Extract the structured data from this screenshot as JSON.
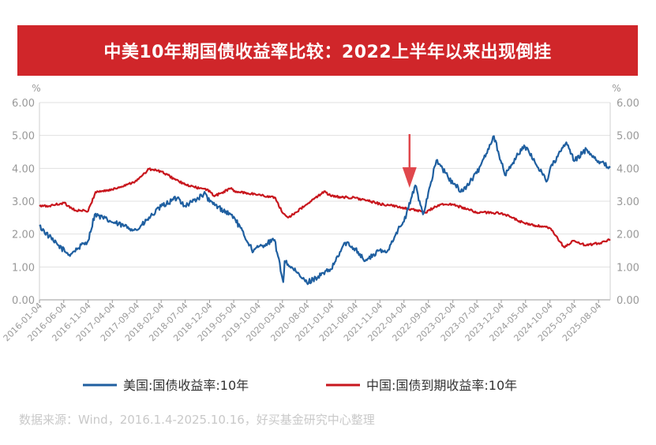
{
  "title": "中美10年期国债收益率比较：2022上半年以来出现倒挂",
  "source": "数据来源：Wind，2016.1.4-2025.10.16，好买基金研究中心整理",
  "colors": {
    "title_bg": "#d0262a",
    "us": "#1f5fa0",
    "cn": "#c8161d",
    "arrow": "#e0474c",
    "grid": "#e1e1e1",
    "axis_text": "#999999"
  },
  "chart_data": {
    "type": "line",
    "title": "中美10年期国债收益率比较：2022上半年以来出现倒挂",
    "y_unit_left": "%",
    "y_unit_right": "%",
    "ylim": [
      0,
      6
    ],
    "y_ticks": [
      "0.00",
      "1.00",
      "2.00",
      "3.00",
      "4.00",
      "5.00",
      "6.00"
    ],
    "x_ticks": [
      "2016-01-04",
      "2016-06-04",
      "2016-11-04",
      "2017-04-04",
      "2017-09-04",
      "2018-02-04",
      "2018-07-04",
      "2018-12-04",
      "2019-05-04",
      "2019-10-04",
      "2020-03-04",
      "2020-08-04",
      "2021-01-04",
      "2021-06-04",
      "2021-11-04",
      "2022-04-04",
      "2022-09-04",
      "2023-02-04",
      "2023-07-04",
      "2023-12-04",
      "2024-05-04",
      "2024-10-04",
      "2025-03-04",
      "2025-08-04"
    ],
    "grid": true,
    "legend_position": "bottom",
    "annotation": {
      "type": "arrow",
      "x": "2022-04-04"
    },
    "series": [
      {
        "name": "美国:国债收益率:10年",
        "color": "#1f5fa0",
        "x": [
          "2016-01-04",
          "2016-04-01",
          "2016-07-08",
          "2016-11-04",
          "2016-12-15",
          "2017-04-04",
          "2017-09-04",
          "2018-02-04",
          "2018-05-17",
          "2018-07-04",
          "2018-11-08",
          "2018-12-04",
          "2019-05-04",
          "2019-09-04",
          "2019-10-04",
          "2020-01-15",
          "2020-03-09",
          "2020-03-18",
          "2020-08-04",
          "2021-01-04",
          "2021-03-31",
          "2021-06-04",
          "2021-08-04",
          "2021-11-04",
          "2021-12-15",
          "2022-02-15",
          "2022-04-04",
          "2022-06-14",
          "2022-08-01",
          "2022-10-24",
          "2023-02-04",
          "2023-04-05",
          "2023-07-04",
          "2023-10-19",
          "2023-12-27",
          "2024-02-04",
          "2024-04-25",
          "2024-09-16",
          "2024-10-04",
          "2025-01-14",
          "2025-03-04",
          "2025-05-20",
          "2025-08-04",
          "2025-10-16"
        ],
        "y": [
          2.24,
          1.78,
          1.37,
          1.8,
          2.6,
          2.36,
          2.12,
          2.84,
          3.11,
          2.86,
          3.23,
          2.98,
          2.53,
          1.47,
          1.6,
          1.82,
          0.54,
          1.18,
          0.52,
          0.93,
          1.74,
          1.56,
          1.18,
          1.5,
          1.44,
          2.05,
          2.38,
          3.48,
          2.6,
          4.24,
          3.53,
          3.3,
          3.85,
          4.98,
          3.79,
          4.1,
          4.7,
          3.62,
          3.98,
          4.79,
          4.22,
          4.58,
          4.22,
          4.02
        ]
      },
      {
        "name": "中国:国债到期收益率:10年",
        "color": "#c8161d",
        "x": [
          "2016-01-04",
          "2016-03-01",
          "2016-06-04",
          "2016-08-15",
          "2016-11-04",
          "2016-12-20",
          "2017-04-04",
          "2017-09-04",
          "2017-11-20",
          "2018-02-04",
          "2018-07-04",
          "2018-12-04",
          "2019-01-03",
          "2019-04-20",
          "2019-05-04",
          "2019-10-04",
          "2020-01-20",
          "2020-03-04",
          "2020-04-08",
          "2020-08-04",
          "2020-11-20",
          "2021-01-04",
          "2021-06-04",
          "2021-11-04",
          "2022-04-04",
          "2022-08-20",
          "2022-09-04",
          "2022-11-15",
          "2023-02-04",
          "2023-07-04",
          "2023-12-04",
          "2024-05-04",
          "2024-10-04",
          "2024-12-31",
          "2025-03-04",
          "2025-05-15",
          "2025-08-04",
          "2025-10-16"
        ],
        "y": [
          2.85,
          2.85,
          2.95,
          2.72,
          2.7,
          3.28,
          3.35,
          3.62,
          3.98,
          3.9,
          3.5,
          3.32,
          3.15,
          3.4,
          3.3,
          3.2,
          3.1,
          2.65,
          2.5,
          2.9,
          3.3,
          3.15,
          3.1,
          2.92,
          2.8,
          2.65,
          2.72,
          2.9,
          2.9,
          2.66,
          2.64,
          2.31,
          2.18,
          1.6,
          1.8,
          1.65,
          1.72,
          1.84
        ]
      }
    ]
  }
}
